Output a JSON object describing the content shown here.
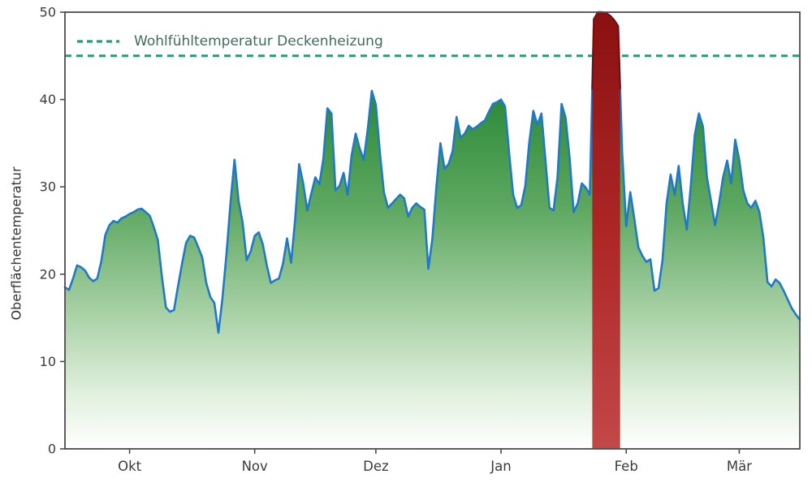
{
  "chart_data": {
    "type": "area",
    "title": "",
    "xlabel": "",
    "ylabel": "Oberflächentemperatur",
    "ylim": [
      0,
      50
    ],
    "yticks": [
      0,
      10,
      20,
      30,
      40,
      50
    ],
    "xlim_days": [
      0,
      182
    ],
    "xticks": [
      {
        "label": "Okt",
        "day": 16
      },
      {
        "label": "Nov",
        "day": 47
      },
      {
        "label": "Dez",
        "day": 77
      },
      {
        "label": "Jan",
        "day": 108
      },
      {
        "label": "Feb",
        "day": 139
      },
      {
        "label": "Mär",
        "day": 167
      }
    ],
    "grid": false,
    "legend": {
      "label": "Wohlfühltemperatur Deckenheizung",
      "position": "top-left",
      "style": "dashed-line"
    },
    "reference_line": {
      "value": 45,
      "style": "dashed"
    },
    "highlight_region": {
      "start_day": 130.6,
      "end_day": 137.5
    },
    "series": [
      {
        "name": "Oberflächentemperatur",
        "x_unit": "day-index (daily values, mid-September to mid-March)",
        "values": [
          18.5,
          18.2,
          19.5,
          21.0,
          20.8,
          20.4,
          19.6,
          19.2,
          19.5,
          21.5,
          24.5,
          25.6,
          26.1,
          25.9,
          26.4,
          26.6,
          26.9,
          27.1,
          27.4,
          27.5,
          27.1,
          26.7,
          25.4,
          23.9,
          19.8,
          16.2,
          15.7,
          15.9,
          18.6,
          21.2,
          23.6,
          24.4,
          24.2,
          23.1,
          21.9,
          19.0,
          17.4,
          16.7,
          13.3,
          17.2,
          22.3,
          28.2,
          33.1,
          28.4,
          25.9,
          21.6,
          22.6,
          24.4,
          24.8,
          23.4,
          21.0,
          19.0,
          19.3,
          19.5,
          21.2,
          24.1,
          21.3,
          26.2,
          32.6,
          30.4,
          27.3,
          29.2,
          31.1,
          30.3,
          33.2,
          39.0,
          38.4,
          29.6,
          30.1,
          31.6,
          29.1,
          33.6,
          36.1,
          34.4,
          33.1,
          36.6,
          41.0,
          39.4,
          33.9,
          29.4,
          27.6,
          28.1,
          28.6,
          29.1,
          28.7,
          26.6,
          27.6,
          28.1,
          27.7,
          27.4,
          20.6,
          24.1,
          30.1,
          35.0,
          32.1,
          32.6,
          34.1,
          38.0,
          35.6,
          36.1,
          37.0,
          36.6,
          36.9,
          37.3,
          37.6,
          38.6,
          39.5,
          39.7,
          40.0,
          39.2,
          33.9,
          29.1,
          27.6,
          27.9,
          30.1,
          35.1,
          38.7,
          37.1,
          38.4,
          33.1,
          27.6,
          27.3,
          31.1,
          39.5,
          37.9,
          33.2,
          27.1,
          28.1,
          30.4,
          29.9,
          29.1,
          49.2,
          50.0,
          50.0,
          49.9,
          49.6,
          49.1,
          48.4,
          34.0,
          25.5,
          29.4,
          26.4,
          23.1,
          22.1,
          21.4,
          21.7,
          18.1,
          18.4,
          21.6,
          28.1,
          31.4,
          29.1,
          32.4,
          28.1,
          25.1,
          30.1,
          36.0,
          38.4,
          36.9,
          31.1,
          28.4,
          25.6,
          28.1,
          31.1,
          33.0,
          30.4,
          35.4,
          33.1,
          29.6,
          28.1,
          27.6,
          28.4,
          27.1,
          24.1,
          19.1,
          18.6,
          19.4,
          19.0,
          18.1,
          17.1,
          16.1,
          15.4,
          14.8
        ]
      }
    ],
    "colors": {
      "line": "#2079c7",
      "comfort_line": "#0ca87b",
      "legend_text": "#3f6b5f",
      "axis": "#4d4d4d",
      "tick_text": "#3b3b3b",
      "axis_label": "#333333",
      "highlight_edge": "#7c0d0d",
      "area_stops": [
        [
          0,
          "#156a20"
        ],
        [
          0.2,
          "#2e8b3a"
        ],
        [
          0.45,
          "#5ea861"
        ],
        [
          0.7,
          "#abd3a8"
        ],
        [
          0.88,
          "#e2f1e0"
        ],
        [
          1,
          "#ffffff"
        ]
      ],
      "highlight_stops": [
        [
          0,
          "#8a1111"
        ],
        [
          0.5,
          "#ad2626"
        ],
        [
          1,
          "#c24848"
        ]
      ]
    }
  }
}
